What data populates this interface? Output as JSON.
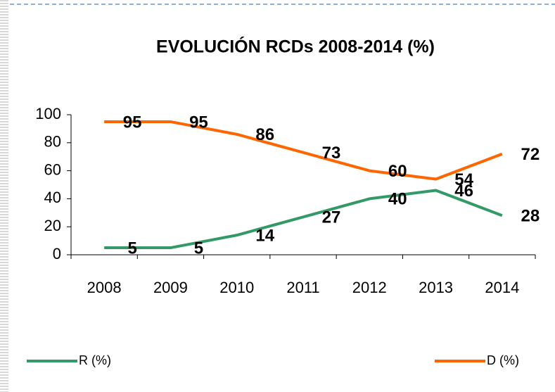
{
  "chart_data": {
    "type": "line",
    "title": "EVOLUCIÓN RCDs 2008-2014 (%)",
    "categories": [
      "2008",
      "2009",
      "2010",
      "2011",
      "2012",
      "2013",
      "2014"
    ],
    "series": [
      {
        "name": "R (%)",
        "color": "#339966",
        "values": [
          5,
          5,
          14,
          27,
          40,
          46,
          28
        ]
      },
      {
        "name": "D (%)",
        "color": "#ff6600",
        "values": [
          95,
          95,
          86,
          73,
          60,
          54,
          72
        ]
      }
    ],
    "ylim": [
      0,
      100
    ],
    "yticks": [
      0,
      20,
      40,
      60,
      80,
      100
    ],
    "grid": false
  }
}
